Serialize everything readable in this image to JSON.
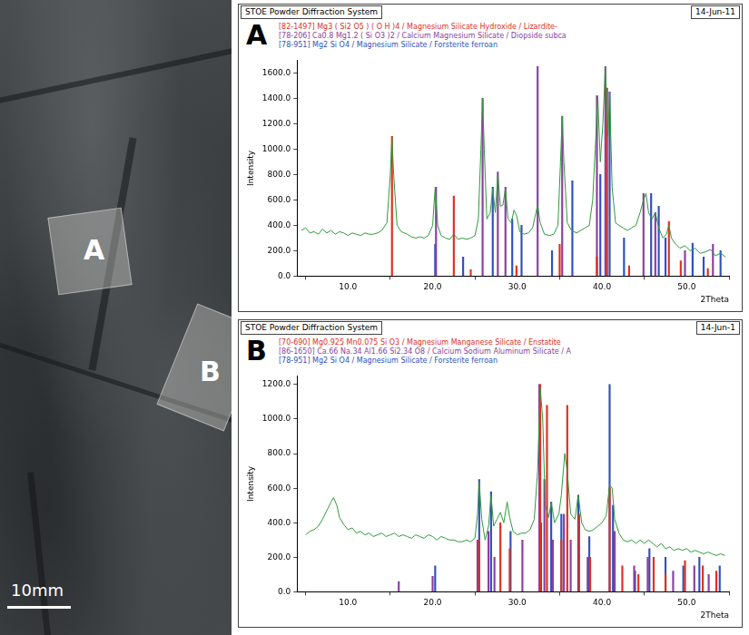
{
  "photo": {
    "labels": [
      "A",
      "B"
    ],
    "scale_bar": "10mm"
  },
  "chart_data": [
    {
      "type": "line",
      "title": "STOE Powder Diffraction System",
      "subtitle": "14-Jun-11",
      "panel_label": "A",
      "x_label": "2Theta",
      "y_label": "Intensity",
      "xlim": [
        4,
        55
      ],
      "ylim": [
        0,
        1700
      ],
      "xticks": [
        {
          "value": 10,
          "label": "10.0"
        },
        {
          "value": 20,
          "label": "20.0"
        },
        {
          "value": 30,
          "label": "30.0"
        },
        {
          "value": 40,
          "label": "40.0"
        },
        {
          "value": 50,
          "label": "50.0"
        }
      ],
      "yticks": [
        {
          "value": 0,
          "label": "0.0"
        },
        {
          "value": 200,
          "label": "200.0"
        },
        {
          "value": 400,
          "label": "400.0"
        },
        {
          "value": 600,
          "label": "600.0"
        },
        {
          "value": 800,
          "label": "800.0"
        },
        {
          "value": 1000,
          "label": "1000.0"
        },
        {
          "value": 1200,
          "label": "1200.0"
        },
        {
          "value": 1400,
          "label": "1400.0"
        },
        {
          "value": 1600,
          "label": "1600.0"
        }
      ],
      "grid": false,
      "legend": "top",
      "series": [
        {
          "type": "line",
          "color": "#2f9a3a",
          "x": [
            4.5,
            5,
            5.5,
            6,
            6.5,
            7,
            7.5,
            8,
            8.5,
            9,
            9.5,
            10,
            10.5,
            11,
            11.5,
            12,
            12.5,
            13,
            13.5,
            14,
            14.6,
            15,
            15.2,
            15.4,
            15.8,
            16.3,
            17,
            17.5,
            18,
            18.5,
            19,
            19.5,
            20,
            20.3,
            20.6,
            21,
            21.5,
            22,
            22.5,
            23,
            23.5,
            24,
            24.5,
            25,
            25.4,
            25.7,
            25.9,
            26.1,
            26.4,
            26.8,
            27.1,
            27.4,
            27.7,
            28,
            28.3,
            28.6,
            28.9,
            29.3,
            29.6,
            29.9,
            30.3,
            30.8,
            31.3,
            31.8,
            32.2,
            32.4,
            32.7,
            33.2,
            33.8,
            34.3,
            34.8,
            35.1,
            35.3,
            35.5,
            35.9,
            36.4,
            37,
            37.5,
            38,
            38.5,
            38.9,
            39.2,
            39.5,
            39.8,
            40.1,
            40.4,
            40.7,
            40.9,
            41.2,
            41.6,
            42,
            42.5,
            43,
            43.5,
            44,
            44.5,
            44.9,
            45.2,
            45.5,
            45.9,
            46.3,
            46.7,
            47.2,
            47.6,
            47.9,
            48.2,
            48.6,
            49.2,
            49.8,
            50.4,
            51,
            51.6,
            52.2,
            52.8,
            53.4,
            54,
            54.6
          ],
          "values": [
            360,
            380,
            340,
            350,
            330,
            370,
            340,
            360,
            330,
            350,
            340,
            320,
            340,
            330,
            320,
            340,
            330,
            330,
            340,
            360,
            420,
            800,
            1090,
            800,
            400,
            350,
            330,
            310,
            300,
            310,
            300,
            320,
            400,
            700,
            400,
            320,
            300,
            290,
            330,
            290,
            300,
            290,
            300,
            320,
            450,
            1000,
            1400,
            1000,
            450,
            500,
            690,
            500,
            800,
            550,
            560,
            690,
            450,
            420,
            520,
            480,
            350,
            330,
            340,
            380,
            500,
            560,
            420,
            330,
            320,
            330,
            400,
            900,
            1260,
            900,
            420,
            360,
            340,
            360,
            380,
            400,
            600,
            1000,
            1420,
            900,
            1200,
            1650,
            1100,
            1450,
            700,
            420,
            400,
            380,
            360,
            380,
            400,
            500,
            600,
            650,
            500,
            450,
            500,
            380,
            300,
            330,
            400,
            300,
            260,
            220,
            240,
            200,
            220,
            180,
            190,
            210,
            160,
            180,
            150
          ]
        },
        {
          "type": "bar",
          "name": "[82-1497] Mg3 ( Si2 O5 ) ( O H )4 / Magnesium Silicate Hydroxide / Lizardite-",
          "color": "#e0301e",
          "x": [
            15.2,
            22.5,
            24.5,
            29.9,
            35.0,
            39.4,
            40.6,
            43.2,
            47.9,
            49.3,
            52.5
          ],
          "values": [
            1100,
            630,
            50,
            80,
            250,
            150,
            1480,
            80,
            430,
            120,
            60
          ]
        },
        {
          "type": "bar",
          "name": "[78-206] Ca0.8 Mg1.2 ( Si O3 )2 / Calcium Magnesium Silicate / Diopside subca",
          "color": "#8a3fa0",
          "x": [
            20.4,
            25.9,
            27.7,
            28.6,
            32.4,
            35.3,
            39.4,
            40.4,
            44.9,
            46.3,
            49.8,
            53.1
          ],
          "values": [
            700,
            1400,
            820,
            700,
            1650,
            1260,
            1420,
            1650,
            650,
            500,
            200,
            250
          ]
        },
        {
          "type": "bar",
          "name": "[78-951] Mg2 Si O4 / Magnesium Silicate / Forsterite ferroan",
          "color": "#3050c0",
          "x": [
            20.3,
            23.6,
            27.1,
            29.4,
            30.5,
            34.1,
            36.5,
            39.8,
            40.9,
            42.6,
            45.8,
            46.7,
            47.5,
            50.7,
            52,
            54
          ],
          "values": [
            250,
            150,
            700,
            450,
            400,
            200,
            750,
            800,
            1450,
            300,
            650,
            550,
            300,
            260,
            150,
            200
          ]
        }
      ]
    },
    {
      "type": "line",
      "title": "STOE Powder Diffraction System",
      "subtitle": "14-Jun-1",
      "panel_label": "B",
      "x_label": "2Theta",
      "y_label": "Intensity",
      "xlim": [
        4,
        55
      ],
      "ylim": [
        0,
        1250
      ],
      "xticks": [
        {
          "value": 10,
          "label": "10.0"
        },
        {
          "value": 20,
          "label": "20.0"
        },
        {
          "value": 30,
          "label": "30.0"
        },
        {
          "value": 40,
          "label": "40.0"
        },
        {
          "value": 50,
          "label": "50.0"
        }
      ],
      "yticks": [
        {
          "value": 0,
          "label": "0.0"
        },
        {
          "value": 200,
          "label": "200.0"
        },
        {
          "value": 400,
          "label": "400.0"
        },
        {
          "value": 600,
          "label": "600.0"
        },
        {
          "value": 800,
          "label": "800.0"
        },
        {
          "value": 1000,
          "label": "1000.0"
        },
        {
          "value": 1200,
          "label": "1200.0"
        }
      ],
      "grid": false,
      "legend": "top",
      "series": [
        {
          "type": "line",
          "color": "#2f9a3a",
          "x": [
            5,
            5.5,
            6,
            6.5,
            7,
            7.5,
            8,
            8.3,
            8.7,
            9,
            9.5,
            10,
            10.5,
            11,
            11.5,
            12,
            12.5,
            13,
            13.5,
            14,
            14.5,
            15,
            15.5,
            16,
            16.5,
            17,
            17.5,
            18,
            18.5,
            19,
            19.5,
            20,
            20.5,
            21,
            21.5,
            22,
            22.5,
            23,
            23.5,
            24,
            24.5,
            25,
            25.3,
            25.5,
            25.8,
            26.2,
            26.6,
            26.9,
            27.2,
            27.6,
            28,
            28.4,
            28.8,
            29.1,
            29.5,
            30,
            30.5,
            31,
            31.5,
            32,
            32.4,
            32.7,
            33,
            33.3,
            33.7,
            34,
            34.4,
            34.9,
            35.2,
            35.6,
            35.9,
            36.3,
            36.8,
            37.2,
            37.6,
            38,
            38.5,
            39,
            39.5,
            40,
            40.5,
            40.9,
            41.2,
            41.5,
            42,
            42.5,
            43,
            43.5,
            44,
            44.5,
            45,
            45.5,
            46,
            46.5,
            47,
            47.5,
            48,
            48.5,
            49,
            49.5,
            50,
            50.5,
            51,
            51.5,
            52,
            52.5,
            53,
            53.5,
            54,
            54.5
          ],
          "values": [
            330,
            350,
            360,
            380,
            420,
            470,
            520,
            545,
            500,
            430,
            390,
            360,
            370,
            340,
            350,
            330,
            340,
            320,
            330,
            340,
            320,
            330,
            340,
            320,
            330,
            320,
            310,
            330,
            320,
            310,
            330,
            320,
            300,
            320,
            310,
            300,
            300,
            290,
            290,
            300,
            290,
            310,
            450,
            640,
            420,
            300,
            380,
            560,
            380,
            420,
            460,
            400,
            520,
            430,
            350,
            330,
            340,
            340,
            360,
            420,
            700,
            1180,
            1000,
            500,
            430,
            520,
            400,
            450,
            560,
            800,
            700,
            450,
            420,
            560,
            400,
            360,
            350,
            360,
            380,
            400,
            440,
            620,
            600,
            420,
            340,
            300,
            290,
            300,
            280,
            300,
            280,
            300,
            280,
            260,
            280,
            250,
            260,
            240,
            250,
            240,
            250,
            230,
            240,
            230,
            220,
            230,
            220,
            210,
            220,
            210
          ]
        },
        {
          "type": "bar",
          "name": "[70-690] Mg0.925 Mn0.075 Si O3 / Magnesium Manganese Silicate / Enstatite",
          "color": "#e0301e",
          "x": [
            25.5,
            28,
            29.1,
            32.7,
            33.5,
            35.2,
            35.9,
            37.3,
            38.6,
            40.9,
            42.4,
            44.3,
            46.1,
            47.5,
            49.8,
            51.9,
            53.5
          ],
          "values": [
            300,
            400,
            250,
            1200,
            1080,
            300,
            1080,
            450,
            200,
            600,
            150,
            100,
            200,
            100,
            180,
            150,
            120
          ]
        },
        {
          "type": "bar",
          "name": "[86-1650] Ca.66 Na.34 Al1.66 Si2.34 O8 / Calcium Sodium Aluminum Silicate / A",
          "color": "#8a3fa0",
          "x": [
            16,
            20,
            25.3,
            26.6,
            27.3,
            30.6,
            32.6,
            33.2,
            34.2,
            35.5,
            36.3,
            38.3,
            41.5,
            43.8,
            45.4,
            48.4,
            50.9,
            52.6
          ],
          "values": [
            60,
            90,
            300,
            350,
            200,
            300,
            1200,
            650,
            300,
            450,
            300,
            200,
            350,
            150,
            200,
            120,
            150,
            100
          ]
        },
        {
          "type": "bar",
          "name": "[78-951] Mg2 Si O4 / Magnesium Silicate / Forsterite ferroan",
          "color": "#3050c0",
          "x": [
            20.3,
            25.5,
            26.9,
            29.2,
            32.8,
            34,
            35.2,
            37.2,
            38.5,
            40.9,
            41.3,
            43.9,
            45.6,
            47.5,
            49.6,
            51.5,
            53.9
          ],
          "values": [
            150,
            650,
            580,
            350,
            400,
            520,
            450,
            560,
            320,
            1200,
            500,
            120,
            250,
            200,
            150,
            200,
            150
          ]
        }
      ]
    }
  ]
}
